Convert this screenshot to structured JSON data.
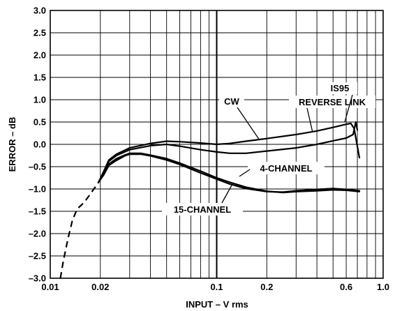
{
  "chart_data": {
    "type": "line",
    "title": "",
    "xlabel": "INPUT – V rms",
    "ylabel": "ERROR – dB",
    "xscale": "log",
    "xlim": [
      0.01,
      1.0
    ],
    "ylim": [
      -3.0,
      3.0
    ],
    "grid": true,
    "x_ticks": [
      {
        "value": 0.01,
        "label": "0.01"
      },
      {
        "value": 0.02,
        "label": "0.02"
      },
      {
        "value": 0.1,
        "label": "0.1"
      },
      {
        "value": 0.2,
        "label": "0.2"
      },
      {
        "value": 0.6,
        "label": "0.6"
      },
      {
        "value": 1.0,
        "label": "1.0"
      }
    ],
    "x_gridlines": [
      0.02,
      0.03,
      0.04,
      0.05,
      0.06,
      0.07,
      0.08,
      0.09,
      0.1,
      0.2,
      0.3,
      0.4,
      0.5,
      0.6,
      0.7,
      0.8,
      0.9
    ],
    "y_ticks": [
      {
        "value": 3.0,
        "label": "3.0"
      },
      {
        "value": 2.5,
        "label": "2.5"
      },
      {
        "value": 2.0,
        "label": "2.0"
      },
      {
        "value": 1.5,
        "label": "1.5"
      },
      {
        "value": 1.0,
        "label": "1.0"
      },
      {
        "value": 0.5,
        "label": "0.5"
      },
      {
        "value": 0.0,
        "label": "0.0"
      },
      {
        "value": -0.5,
        "label": "–0.5"
      },
      {
        "value": -1.0,
        "label": "–1.0"
      },
      {
        "value": -1.5,
        "label": "–1.5"
      },
      {
        "value": -2.0,
        "label": "–2.0"
      },
      {
        "value": -2.5,
        "label": "–2.5"
      },
      {
        "value": -3.0,
        "label": "–3.0"
      }
    ],
    "series": [
      {
        "name": "CW",
        "values": [
          [
            0.0195,
            -0.85
          ],
          [
            0.021,
            -0.6
          ],
          [
            0.0225,
            -0.35
          ],
          [
            0.025,
            -0.22
          ],
          [
            0.03,
            -0.08
          ],
          [
            0.04,
            0.02
          ],
          [
            0.05,
            0.07
          ],
          [
            0.06,
            0.06
          ],
          [
            0.08,
            0.03
          ],
          [
            0.1,
            0.0
          ],
          [
            0.12,
            0.02
          ],
          [
            0.15,
            0.07
          ],
          [
            0.2,
            0.13
          ],
          [
            0.3,
            0.22
          ],
          [
            0.4,
            0.3
          ],
          [
            0.5,
            0.38
          ],
          [
            0.6,
            0.45
          ],
          [
            0.64,
            0.47
          ],
          [
            0.67,
            0.35
          ],
          [
            0.72,
            -0.3
          ]
        ]
      },
      {
        "name": "IS95 REVERSE LINK",
        "values": [
          [
            0.0195,
            -0.85
          ],
          [
            0.021,
            -0.62
          ],
          [
            0.0225,
            -0.38
          ],
          [
            0.025,
            -0.25
          ],
          [
            0.03,
            -0.12
          ],
          [
            0.04,
            -0.03
          ],
          [
            0.05,
            0.0
          ],
          [
            0.06,
            -0.04
          ],
          [
            0.08,
            -0.12
          ],
          [
            0.1,
            -0.17
          ],
          [
            0.12,
            -0.2
          ],
          [
            0.15,
            -0.2
          ],
          [
            0.2,
            -0.15
          ],
          [
            0.3,
            -0.08
          ],
          [
            0.4,
            0.0
          ],
          [
            0.5,
            0.08
          ],
          [
            0.6,
            0.14
          ],
          [
            0.66,
            0.22
          ],
          [
            0.685,
            0.5
          ],
          [
            0.7,
            0.32
          ]
        ]
      },
      {
        "name": "4-CHANNEL",
        "values": [
          [
            0.0195,
            -0.85
          ],
          [
            0.021,
            -0.66
          ],
          [
            0.0225,
            -0.44
          ],
          [
            0.025,
            -0.32
          ],
          [
            0.028,
            -0.24
          ],
          [
            0.03,
            -0.2
          ],
          [
            0.035,
            -0.2
          ],
          [
            0.04,
            -0.24
          ],
          [
            0.05,
            -0.32
          ],
          [
            0.06,
            -0.42
          ],
          [
            0.08,
            -0.6
          ],
          [
            0.1,
            -0.75
          ],
          [
            0.12,
            -0.85
          ],
          [
            0.15,
            -0.96
          ],
          [
            0.2,
            -1.05
          ],
          [
            0.25,
            -1.08
          ],
          [
            0.3,
            -1.06
          ],
          [
            0.4,
            -1.04
          ],
          [
            0.5,
            -1.02
          ],
          [
            0.6,
            -1.03
          ],
          [
            0.72,
            -1.06
          ]
        ]
      },
      {
        "name": "15-CHANNEL",
        "values": [
          [
            0.0195,
            -0.85
          ],
          [
            0.021,
            -0.68
          ],
          [
            0.0225,
            -0.47
          ],
          [
            0.025,
            -0.36
          ],
          [
            0.028,
            -0.26
          ],
          [
            0.03,
            -0.22
          ],
          [
            0.035,
            -0.22
          ],
          [
            0.04,
            -0.26
          ],
          [
            0.05,
            -0.35
          ],
          [
            0.06,
            -0.45
          ],
          [
            0.08,
            -0.64
          ],
          [
            0.1,
            -0.78
          ],
          [
            0.12,
            -0.89
          ],
          [
            0.15,
            -0.99
          ],
          [
            0.2,
            -1.06
          ],
          [
            0.25,
            -1.07
          ],
          [
            0.3,
            -1.04
          ],
          [
            0.4,
            -1.01
          ],
          [
            0.5,
            -0.99
          ],
          [
            0.6,
            -1.01
          ],
          [
            0.72,
            -1.04
          ]
        ]
      },
      {
        "name": "",
        "style": "dashed",
        "values": [
          [
            0.0115,
            -3.0
          ],
          [
            0.012,
            -2.6
          ],
          [
            0.0128,
            -2.1
          ],
          [
            0.0136,
            -1.7
          ],
          [
            0.0145,
            -1.45
          ],
          [
            0.016,
            -1.3
          ],
          [
            0.0175,
            -1.1
          ],
          [
            0.0195,
            -0.85
          ]
        ]
      }
    ],
    "annotations": [
      {
        "text": "CW",
        "target_x": 0.2,
        "target_y": 0.1
      },
      {
        "text": "IS95",
        "target_x": 0.62,
        "target_y": 0.46
      },
      {
        "text": "REVERSE LINK",
        "target_x": 0.57,
        "target_y": 0.18
      },
      {
        "text": "4-CHANNEL",
        "target_x": 0.13,
        "target_y": -0.88
      },
      {
        "text": "15-CHANNEL",
        "target_x": 0.12,
        "target_y": -0.89
      }
    ]
  }
}
